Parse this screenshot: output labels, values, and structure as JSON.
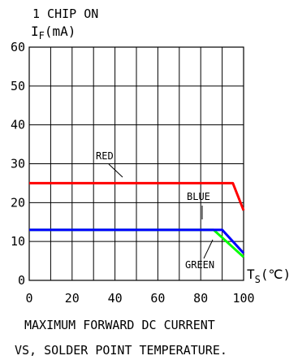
{
  "chart_data": {
    "type": "line",
    "top_note": "1 CHIP ON",
    "ylabel": "I",
    "ylabel_sub": "F",
    "ylabel_unit": "(mA)",
    "xlabel": "T",
    "xlabel_sub": "S",
    "xlabel_unit": "(℃)",
    "xlim": [
      0,
      100
    ],
    "ylim": [
      0,
      60
    ],
    "x_ticks": [
      0,
      20,
      40,
      60,
      80,
      100
    ],
    "y_ticks": [
      0,
      10,
      20,
      30,
      40,
      50,
      60
    ],
    "x_tick_labels": [
      "0",
      "20",
      "40",
      "60",
      "80",
      "100"
    ],
    "y_tick_labels": [
      "0",
      "10",
      "20",
      "30",
      "40",
      "50",
      "60"
    ],
    "grid": true,
    "series": [
      {
        "name": "RED",
        "color": "#ff0000",
        "x": [
          0,
          95,
          100
        ],
        "y": [
          25,
          25,
          18
        ]
      },
      {
        "name": "BLUE",
        "color": "#0000ff",
        "x": [
          0,
          90,
          100
        ],
        "y": [
          13,
          13,
          7
        ]
      },
      {
        "name": "GREEN",
        "color": "#00ff00",
        "x": [
          0,
          86,
          100
        ],
        "y": [
          13,
          13,
          6
        ]
      }
    ],
    "title_line1": "MAXIMUM FORWARD DC CURRENT",
    "title_line2": "VS, SOLDER POINT TEMPERATURE."
  }
}
